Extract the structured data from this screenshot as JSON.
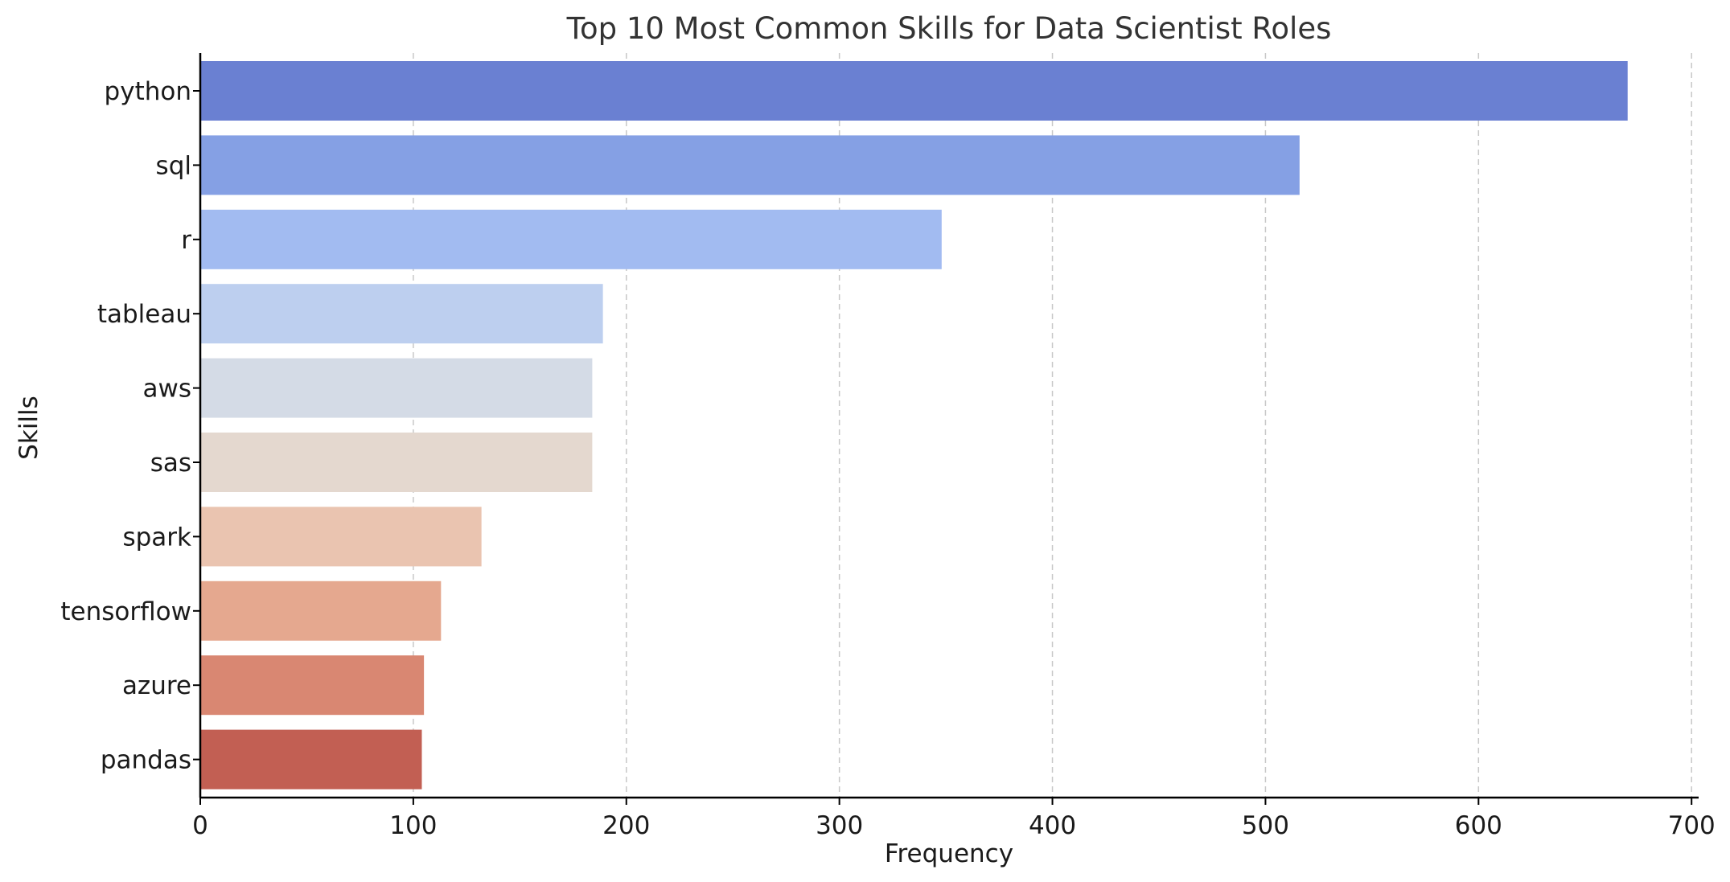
{
  "chart_data": {
    "type": "bar",
    "orientation": "horizontal",
    "title": "Top 10 Most Common Skills for Data Scientist Roles",
    "xlabel": "Frequency",
    "ylabel": "Skills",
    "categories": [
      "python",
      "sql",
      "r",
      "tableau",
      "aws",
      "sas",
      "spark",
      "tensorflow",
      "azure",
      "pandas"
    ],
    "values": [
      670,
      516,
      348,
      189,
      184,
      184,
      132,
      113,
      105,
      104
    ],
    "colors": [
      "#6a80d2",
      "#85a0e4",
      "#a2bbf1",
      "#bdcfef",
      "#d4dbe6",
      "#e4d8cf",
      "#eac4b0",
      "#e5a88f",
      "#d98772",
      "#c25f53"
    ],
    "xlim": [
      0,
      700
    ],
    "xticks": [
      0,
      100,
      200,
      300,
      400,
      500,
      600,
      700
    ],
    "grid": "vertical-dashed",
    "legend": "none"
  }
}
